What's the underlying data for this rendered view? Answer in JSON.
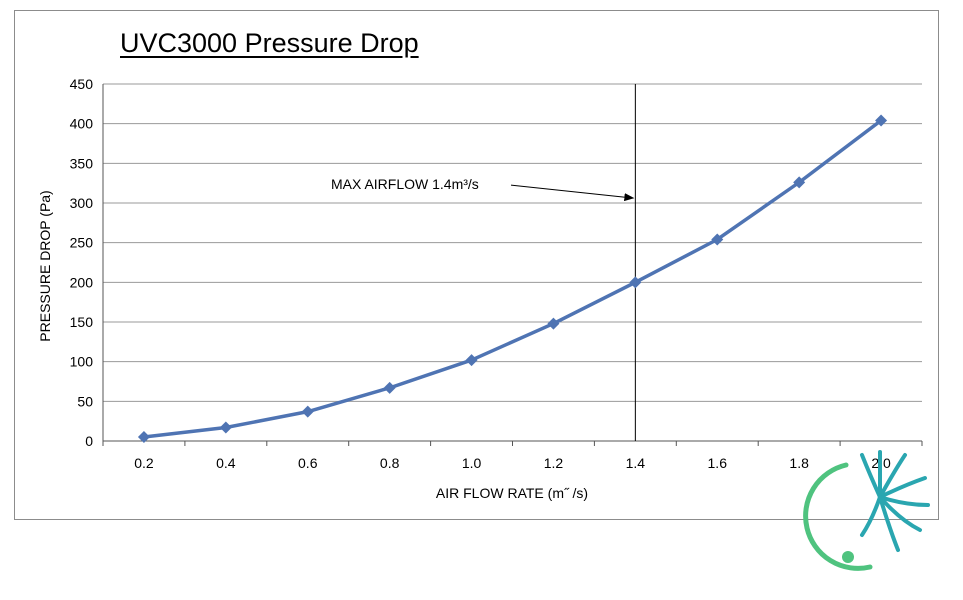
{
  "chart_data": {
    "type": "line",
    "title": "UVC3000 Pressure Drop",
    "xlabel": "AIR FLOW RATE (m˝ /s)",
    "ylabel": "PRESSURE DROP (Pa)",
    "x": [
      "0.2",
      "0.4",
      "0.6",
      "0.8",
      "1.0",
      "1.2",
      "1.4",
      "1.6",
      "1.8",
      "2.0"
    ],
    "x_values": [
      0.2,
      0.4,
      0.6,
      0.8,
      1.0,
      1.2,
      1.4,
      1.6,
      1.8,
      2.0
    ],
    "series": [
      {
        "values": [
          5,
          17,
          37,
          67,
          102,
          148,
          200,
          254,
          326,
          404
        ],
        "color": "#4f74b3"
      }
    ],
    "ylim": [
      0,
      450
    ],
    "yticks": [
      0,
      50,
      100,
      150,
      200,
      250,
      300,
      350,
      400,
      450
    ],
    "grid": "horizontal",
    "legend": "none",
    "annotations": [
      {
        "text": "MAX AIRFLOW 1.4m³/s",
        "x": 1.4,
        "y": 310
      }
    ],
    "vertical_line_x": 1.4
  },
  "logo": {
    "colors": [
      "#2aa6b0",
      "#4fc37f"
    ]
  }
}
